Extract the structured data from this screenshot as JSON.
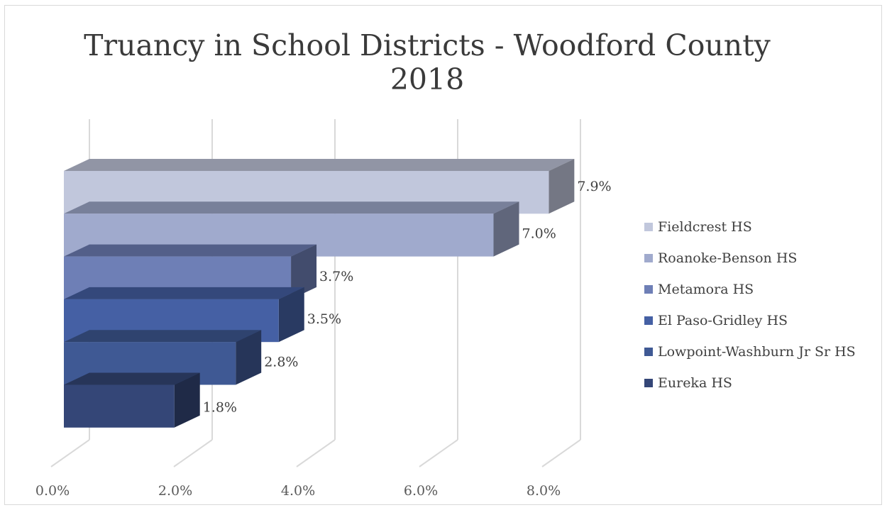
{
  "chart_data": {
    "type": "bar",
    "orientation": "horizontal",
    "style": "3d-stacked-depth",
    "title": "Truancy in School Districts - Woodford County",
    "subtitle": "2018",
    "categories": [
      "Fieldcrest HS",
      "Roanoke-Benson HS",
      "Metamora HS",
      "El Paso-Gridley HS",
      "Lowpoint-Washburn Jr Sr HS",
      "Eureka HS"
    ],
    "values": [
      7.9,
      7.0,
      3.7,
      3.5,
      2.8,
      1.8
    ],
    "value_labels": [
      "7.9%",
      "7.0%",
      "3.7%",
      "3.5%",
      "2.8%",
      "1.8%"
    ],
    "colors": [
      "#c1c7dc",
      "#a0aacd",
      "#6e7fb6",
      "#4560a4",
      "#3f5994",
      "#344677"
    ],
    "xlim": [
      0,
      8
    ],
    "x_ticks": [
      "0.0%",
      "2.0%",
      "4.0%",
      "6.0%",
      "8.0%"
    ],
    "x_tick_values": [
      0,
      2,
      4,
      6,
      8
    ],
    "xlabel": "",
    "ylabel": "",
    "grid": true,
    "legend": "right"
  }
}
